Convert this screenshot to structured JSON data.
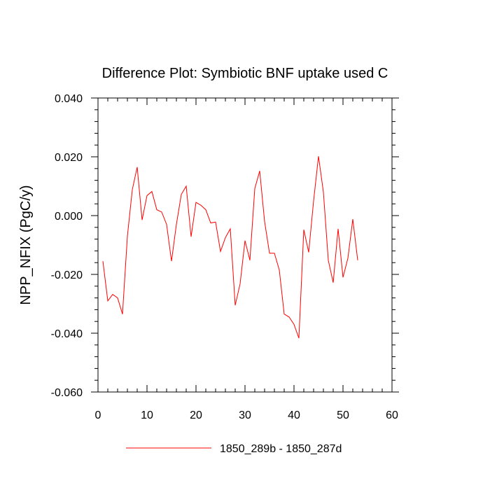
{
  "chart_data": {
    "type": "line",
    "title": "Difference Plot: Symbiotic BNF uptake used C",
    "xlabel": "",
    "ylabel": "NPP_NFIX  (PgC/y)",
    "xlim": [
      0,
      60
    ],
    "ylim": [
      -0.06,
      0.04
    ],
    "x_ticks": [
      0,
      10,
      20,
      30,
      40,
      50,
      60
    ],
    "x_tick_labels": [
      "0",
      "10",
      "20",
      "30",
      "40",
      "50",
      "60"
    ],
    "y_ticks": [
      -0.06,
      -0.04,
      -0.02,
      0.0,
      0.02,
      0.04
    ],
    "y_tick_labels": [
      "-0.060",
      "-0.040",
      "-0.020",
      "0.000",
      "0.020",
      "0.040"
    ],
    "grid": false,
    "legend_position": "bottom-center",
    "series": [
      {
        "name": "1850_289b - 1850_287d",
        "color": "#ff0000",
        "x": [
          1,
          2,
          3,
          4,
          5,
          6,
          7,
          8,
          9,
          10,
          11,
          12,
          13,
          14,
          15,
          16,
          17,
          18,
          19,
          20,
          21,
          22,
          23,
          24,
          25,
          26,
          27,
          28,
          29,
          30,
          31,
          32,
          33,
          34,
          35,
          36,
          37,
          38,
          39,
          40,
          41,
          42,
          43,
          44,
          45,
          46,
          47,
          48,
          49,
          50,
          51,
          52,
          53
        ],
        "values": [
          -0.0155,
          -0.029,
          -0.0268,
          -0.028,
          -0.0335,
          -0.007,
          0.0088,
          0.0165,
          -0.0015,
          0.0068,
          0.0082,
          0.002,
          0.0012,
          -0.003,
          -0.0155,
          -0.003,
          0.0072,
          0.01,
          -0.0072,
          0.0045,
          0.0035,
          0.002,
          -0.0025,
          -0.0022,
          -0.0122,
          -0.0075,
          -0.0045,
          -0.0305,
          -0.0232,
          -0.0085,
          -0.0152,
          0.0092,
          0.0152,
          -0.002,
          -0.0128,
          -0.0128,
          -0.0185,
          -0.0335,
          -0.0345,
          -0.037,
          -0.0417,
          -0.0048,
          -0.0125,
          0.005,
          0.0202,
          0.008,
          -0.0152,
          -0.0228,
          -0.0045,
          -0.021,
          -0.0145,
          -0.0012,
          -0.0152
        ]
      }
    ]
  }
}
